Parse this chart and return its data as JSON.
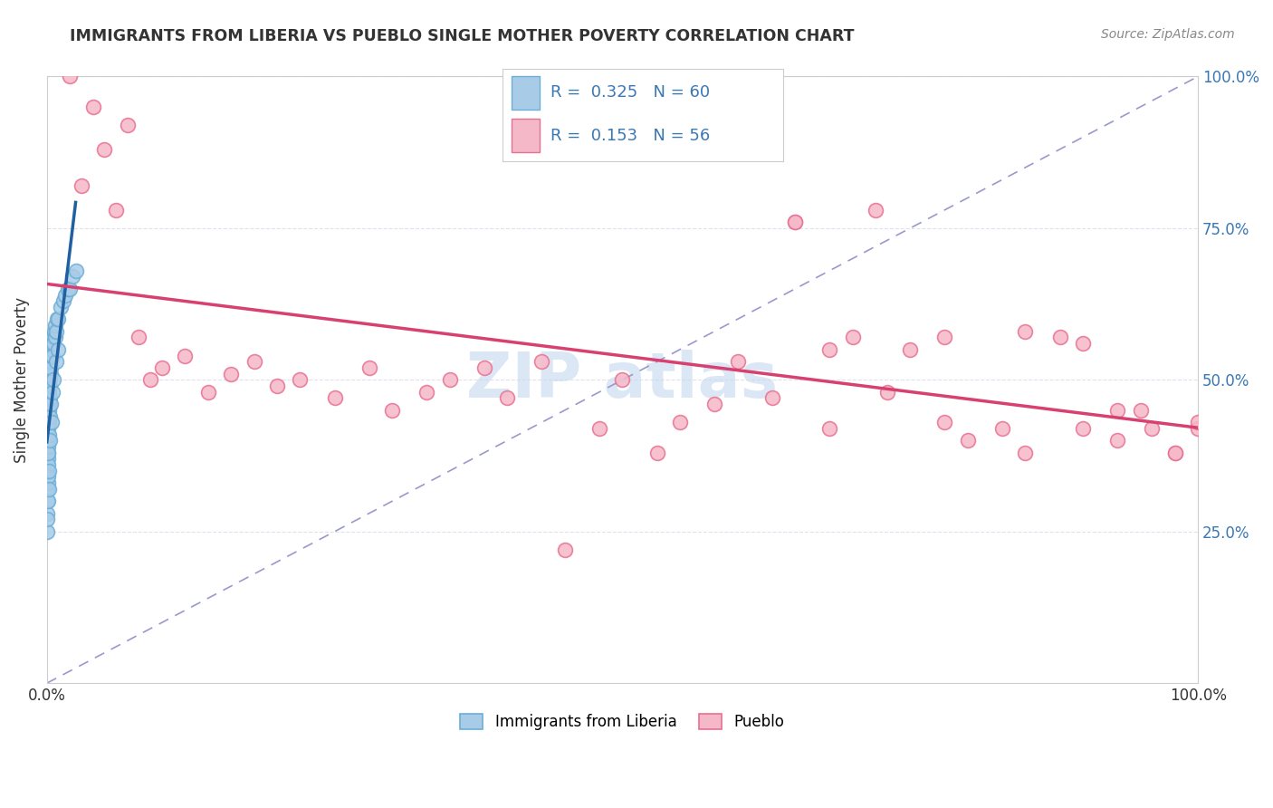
{
  "title": "IMMIGRANTS FROM LIBERIA VS PUEBLO SINGLE MOTHER POVERTY CORRELATION CHART",
  "source": "Source: ZipAtlas.com",
  "ylabel": "Single Mother Poverty",
  "legend_label1": "Immigrants from Liberia",
  "legend_label2": "Pueblo",
  "R1": 0.325,
  "N1": 60,
  "R2": 0.153,
  "N2": 56,
  "blue_fill": "#a8cce8",
  "blue_edge": "#6baed6",
  "pink_fill": "#f5b8c8",
  "pink_edge": "#e87090",
  "trend_blue": "#2060a0",
  "trend_pink": "#d84070",
  "diag_color": "#9999cc",
  "watermark_color": "#c5d8f0",
  "background": "#ffffff",
  "text_color": "#333333",
  "right_tick_color": "#3a78b5",
  "grid_color": "#e0e0ee",
  "blue_x": [
    0.02,
    0.03,
    0.04,
    0.05,
    0.06,
    0.07,
    0.08,
    0.09,
    0.1,
    0.11,
    0.12,
    0.13,
    0.14,
    0.15,
    0.16,
    0.17,
    0.18,
    0.19,
    0.2,
    0.22,
    0.24,
    0.26,
    0.28,
    0.3,
    0.32,
    0.35,
    0.38,
    0.4,
    0.45,
    0.5,
    0.55,
    0.6,
    0.65,
    0.7,
    0.75,
    0.8,
    0.9,
    1.0,
    1.2,
    1.4,
    1.6,
    1.8,
    2.0,
    2.2,
    2.5,
    0.03,
    0.05,
    0.08,
    0.1,
    0.12,
    0.15,
    0.18,
    0.22,
    0.25,
    0.3,
    0.4,
    0.5,
    0.6,
    0.8,
    1.0
  ],
  "blue_y": [
    30,
    32,
    28,
    35,
    38,
    33,
    40,
    37,
    42,
    36,
    44,
    39,
    46,
    41,
    48,
    43,
    50,
    45,
    48,
    47,
    50,
    49,
    52,
    51,
    53,
    52,
    54,
    55,
    56,
    54,
    57,
    56,
    58,
    57,
    59,
    58,
    60,
    60,
    62,
    63,
    64,
    65,
    65,
    67,
    68,
    25,
    27,
    30,
    34,
    38,
    32,
    35,
    40,
    44,
    46,
    43,
    48,
    50,
    53,
    55
  ],
  "pink_x": [
    2,
    3,
    4,
    5,
    6,
    7,
    8,
    9,
    10,
    12,
    14,
    16,
    18,
    20,
    22,
    25,
    28,
    30,
    33,
    35,
    38,
    40,
    43,
    45,
    48,
    50,
    53,
    55,
    58,
    60,
    63,
    65,
    68,
    70,
    73,
    75,
    78,
    80,
    83,
    85,
    88,
    90,
    93,
    95,
    98,
    100,
    72,
    78,
    85,
    90,
    93,
    96,
    98,
    100,
    65,
    68
  ],
  "pink_y": [
    100,
    82,
    95,
    88,
    78,
    92,
    57,
    50,
    52,
    54,
    48,
    51,
    53,
    49,
    50,
    47,
    52,
    45,
    48,
    50,
    52,
    47,
    53,
    22,
    42,
    50,
    38,
    43,
    46,
    53,
    47,
    76,
    42,
    57,
    48,
    55,
    43,
    40,
    42,
    38,
    57,
    42,
    40,
    45,
    38,
    42,
    78,
    57,
    58,
    56,
    45,
    42,
    38,
    43,
    76,
    55
  ]
}
